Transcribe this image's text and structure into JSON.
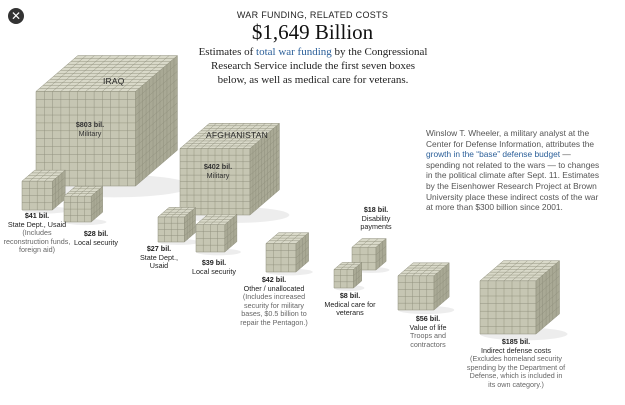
{
  "header": {
    "kicker": "WAR FUNDING, RELATED COSTS",
    "title": "$1,649 Billion",
    "intro_before": "Estimates of ",
    "intro_link": "total war funding",
    "intro_after": " by the Congressional Research Service include the first seven boxes below, as well as medical care for veterans."
  },
  "note": {
    "before": "Winslow T. Wheeler, a military analyst at the Center for Defense Information, attributes the ",
    "link": "growth in the “base” defense budget",
    "after": " — spending not related to the wars — to changes in the political climate after Sept. 11. Estimates by the Eisenhower Research Project at Brown University place these indirect costs of the war at more than $300 billion since 2001."
  },
  "boxes": {
    "iraq": {
      "name": "IRAQ",
      "amount": "$803 bil.",
      "label": "Military"
    },
    "afghanistan": {
      "name": "AFGHANISTAN",
      "amount": "$402 bil.",
      "label": "Military"
    },
    "state_usaid_41": {
      "amount": "$41 bil.",
      "label": "State Dept., Usaid",
      "detail": "(Includes reconstruction funds, foreign aid)"
    },
    "local_security_28": {
      "amount": "$28 bil.",
      "label": "Local security"
    },
    "state_usaid_27": {
      "amount": "$27 bil.",
      "label": "State Dept., Usaid"
    },
    "local_security_39": {
      "amount": "$39 bil.",
      "label": "Local security"
    },
    "other_42": {
      "amount": "$42 bil.",
      "label": "Other / unallocated",
      "detail": "(Includes increased security for military bases, $0.5 billion to repair the Pentagon.)"
    },
    "disability_18": {
      "amount": "$18 bil.",
      "label": "Disability payments"
    },
    "medical_8": {
      "amount": "$8 bil.",
      "label": "Medical care for veterans"
    },
    "value_of_life_56": {
      "amount": "$56 bil.",
      "label": "Value of life",
      "detail": "Troops and contractors"
    },
    "indirect_185": {
      "amount": "$185 bil.",
      "label": "Indirect defense costs",
      "detail": "(Excludes homeland security spending by the Department of Defense, which is included in its own category.)"
    }
  },
  "colors": {
    "cube_top": "#d9d9c9",
    "cube_left": "#c6c6b3",
    "cube_right": "#a9a995",
    "grid": "#8f8f7c",
    "link": "#2b5f99"
  },
  "icons": {
    "close": "close-icon"
  }
}
